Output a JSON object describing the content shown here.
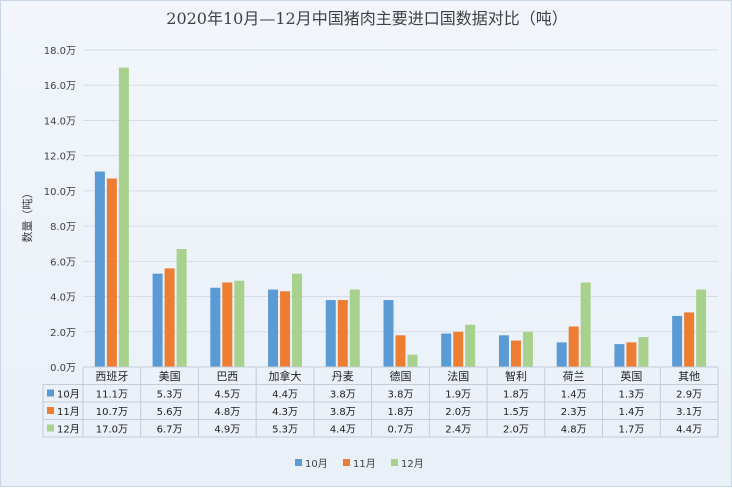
{
  "chart_data": {
    "type": "bar",
    "title": "2020年10月—12月中国猪肉主要进口国数据对比（吨）",
    "ylabel": "数量（吨）",
    "xlabel": "",
    "ylim": [
      0,
      18
    ],
    "y_ticks": [
      "0.0万",
      "2.0万",
      "4.0万",
      "6.0万",
      "8.0万",
      "10.0万",
      "12.0万",
      "14.0万",
      "16.0万",
      "18.0万"
    ],
    "categories": [
      "西班牙",
      "美国",
      "巴西",
      "加拿大",
      "丹麦",
      "德国",
      "法国",
      "智利",
      "荷兰",
      "英国",
      "其他"
    ],
    "series": [
      {
        "name": "10月",
        "color": "#5b9bd5",
        "values": [
          11.1,
          5.3,
          4.5,
          4.4,
          3.8,
          3.8,
          1.9,
          1.8,
          1.4,
          1.3,
          2.9
        ],
        "labels": [
          "11.1万",
          "5.3万",
          "4.5万",
          "4.4万",
          "3.8万",
          "3.8万",
          "1.9万",
          "1.8万",
          "1.4万",
          "1.3万",
          "2.9万"
        ]
      },
      {
        "name": "11月",
        "color": "#ed7d31",
        "values": [
          10.7,
          5.6,
          4.8,
          4.3,
          3.8,
          1.8,
          2.0,
          1.5,
          2.3,
          1.4,
          3.1
        ],
        "labels": [
          "10.7万",
          "5.6万",
          "4.8万",
          "4.3万",
          "3.8万",
          "1.8万",
          "2.0万",
          "1.5万",
          "2.3万",
          "1.4万",
          "3.1万"
        ]
      },
      {
        "name": "12月",
        "color": "#a9d18e",
        "values": [
          17.0,
          6.7,
          4.9,
          5.3,
          4.4,
          0.7,
          2.4,
          2.0,
          4.8,
          1.7,
          4.4
        ],
        "labels": [
          "17.0万",
          "6.7万",
          "4.9万",
          "5.3万",
          "4.4万",
          "0.7万",
          "2.4万",
          "2.0万",
          "4.8万",
          "1.7万",
          "4.4万"
        ]
      }
    ],
    "grid": true,
    "legend_position": "bottom",
    "data_table": true
  }
}
